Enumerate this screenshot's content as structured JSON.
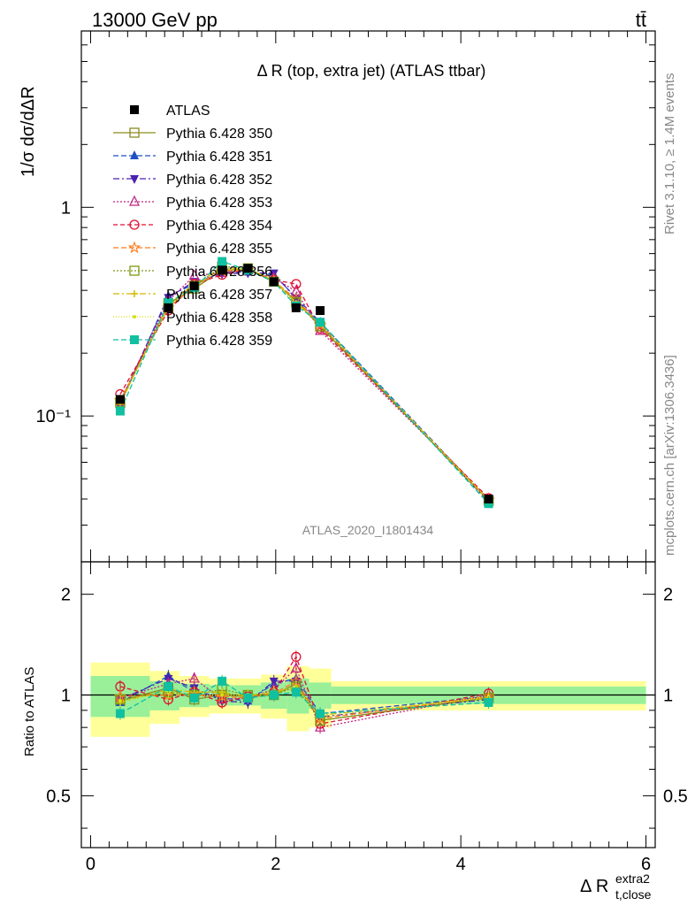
{
  "header": {
    "energy_label": "13000 GeV pp",
    "process_label": "tt̄"
  },
  "side_labels": {
    "rivet": "Rivet 3.1.10, ≥ 1.4M events",
    "mcplots": "mcplots.cern.ch [arXiv:1306.3436]"
  },
  "chart_data": {
    "type": "line",
    "title": "Δ R (top, extra jet) (ATLAS ttbar)",
    "watermark": "ATLAS_2020_I1801434",
    "xlabel": "Δ R",
    "xlabel_sup": "extra2",
    "xlabel_sub": "t,close",
    "ylabel": "1/σ dσ/dΔR",
    "ratio_ylabel": "Ratio to ATLAS",
    "xlim": [
      -0.1,
      6.1
    ],
    "ylim": [
      0.02,
      7.0
    ],
    "yscale": "log",
    "ratio_ylim": [
      0.35,
      2.5
    ],
    "ratio_yscale": "log",
    "x_ticks": [
      "0",
      "2",
      "4",
      "6"
    ],
    "y_ticks": [
      "10⁻¹",
      "1"
    ],
    "ratio_ticks": [
      "0.5",
      "1",
      "2"
    ],
    "legend_position": "top-left",
    "bins": [
      [
        0.0,
        0.64
      ],
      [
        0.64,
        0.96
      ],
      [
        0.96,
        1.28
      ],
      [
        1.28,
        1.56
      ],
      [
        1.56,
        1.84
      ],
      [
        1.84,
        2.12
      ],
      [
        2.12,
        2.36
      ],
      [
        2.36,
        2.6
      ],
      [
        2.6,
        6.0
      ]
    ],
    "x": [
      0.32,
      0.84,
      1.12,
      1.42,
      1.7,
      1.98,
      2.22,
      2.48,
      4.3
    ],
    "reference": {
      "name": "ATLAS",
      "values": [
        0.12,
        0.33,
        0.42,
        0.5,
        0.51,
        0.44,
        0.33,
        0.32,
        0.04
      ],
      "band_inner": [
        0.14,
        0.1,
        0.08,
        0.07,
        0.07,
        0.09,
        0.12,
        0.09,
        0.06
      ],
      "band_outer": [
        0.25,
        0.18,
        0.14,
        0.12,
        0.12,
        0.15,
        0.22,
        0.2,
        0.1
      ]
    },
    "series": [
      {
        "name": "Pythia 6.428 350",
        "color": "#8c8c1f",
        "marker": "square-open",
        "dash": "",
        "ratio": [
          0.96,
          1.05,
          0.97,
          1.0,
          0.99,
          1.0,
          1.08,
          0.84,
          0.98
        ]
      },
      {
        "name": "Pythia 6.428 351",
        "color": "#1f4fc4",
        "marker": "triangle-up",
        "dash": "6,3",
        "ratio": [
          0.95,
          1.14,
          1.02,
          0.98,
          0.96,
          1.08,
          1.12,
          0.88,
          0.99
        ]
      },
      {
        "name": "Pythia 6.428 352",
        "color": "#4a22b0",
        "marker": "triangle-down",
        "dash": "7,3,2,3",
        "ratio": [
          0.97,
          1.12,
          1.05,
          0.96,
          0.95,
          1.1,
          1.1,
          0.86,
          0.97
        ]
      },
      {
        "name": "Pythia 6.428 353",
        "color": "#c02080",
        "marker": "triangle-up-open",
        "dash": "2,2",
        "ratio": [
          0.98,
          1.08,
          1.12,
          0.97,
          0.98,
          1.04,
          1.2,
          0.8,
          1.0
        ]
      },
      {
        "name": "Pythia 6.428 354",
        "color": "#e01030",
        "marker": "circle-open",
        "dash": "5,3",
        "ratio": [
          1.06,
          0.97,
          1.02,
          0.95,
          0.99,
          1.02,
          1.3,
          0.82,
          1.01
        ]
      },
      {
        "name": "Pythia 6.428 355",
        "color": "#ff7a1a",
        "marker": "star-open",
        "dash": "6,3",
        "ratio": [
          0.99,
          1.0,
          1.0,
          0.99,
          0.98,
          1.01,
          1.1,
          0.85,
          0.99
        ]
      },
      {
        "name": "Pythia 6.428 356",
        "color": "#7a9a10",
        "marker": "square-open",
        "dash": "2,2",
        "ratio": [
          0.97,
          1.02,
          1.0,
          1.04,
          1.0,
          1.0,
          1.06,
          0.84,
          0.98
        ]
      },
      {
        "name": "Pythia 6.428 357",
        "color": "#d4b800",
        "marker": "cross",
        "dash": "7,3,2,3",
        "ratio": [
          0.95,
          1.04,
          1.02,
          1.02,
          0.99,
          1.02,
          1.05,
          0.87,
          0.98
        ]
      },
      {
        "name": "Pythia 6.428 358",
        "color": "#d6e010",
        "marker": "dot",
        "dash": "1,2",
        "ratio": [
          0.96,
          1.02,
          1.0,
          1.0,
          1.0,
          1.02,
          1.06,
          0.86,
          0.99
        ]
      },
      {
        "name": "Pythia 6.428 359",
        "color": "#10c0a0",
        "marker": "square",
        "dash": "6,3",
        "ratio": [
          0.88,
          1.06,
          0.98,
          1.1,
          0.98,
          1.0,
          1.02,
          0.88,
          0.95
        ]
      }
    ]
  }
}
